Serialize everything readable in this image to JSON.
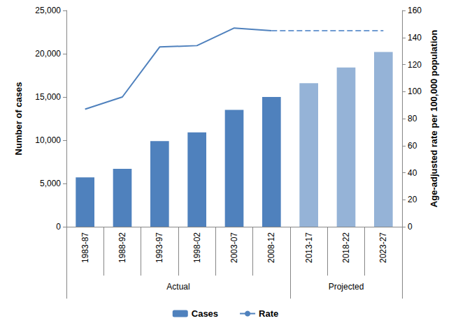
{
  "chart_data": {
    "type": "bar",
    "categories": [
      "1983-87",
      "1988-92",
      "1993-97",
      "1998-02",
      "2003-07",
      "2008-12",
      "2013-17",
      "2018-22",
      "2023-27"
    ],
    "category_groups": [
      {
        "name": "Actual",
        "count": 6
      },
      {
        "name": "Projected",
        "count": 3
      }
    ],
    "y_label": "Number of cases",
    "y2_label": "Age-adjusted rate per 100,000 population",
    "ylim": [
      0,
      25000
    ],
    "yticks": [
      0,
      {
        "value": 5000,
        "label": "5,000"
      },
      {
        "value": 10000,
        "label": "10,000"
      },
      {
        "value": 15000,
        "label": "15,000"
      },
      {
        "value": 20000,
        "label": "20,000"
      },
      {
        "value": 25000,
        "label": "25,000"
      }
    ],
    "y2lim": [
      0,
      160
    ],
    "y2ticks": [
      0,
      20,
      40,
      60,
      80,
      100,
      120,
      140,
      160
    ],
    "grid": false,
    "legend": "bottom",
    "series": [
      {
        "name": "Cases",
        "type": "bar",
        "values": [
          5700,
          6700,
          9900,
          10900,
          13500,
          15000,
          16600,
          18400,
          20200
        ],
        "colors": [
          "#4f81bd",
          "#4f81bd",
          "#4f81bd",
          "#4f81bd",
          "#4f81bd",
          "#4f81bd",
          "#95b3d7",
          "#95b3d7",
          "#95b3d7"
        ]
      },
      {
        "name": "Rate",
        "type": "line",
        "axis": "y2",
        "color": "#4f81bd",
        "line_style": "solid",
        "values": [
          87,
          96,
          133,
          134,
          147,
          145,
          null,
          null,
          null
        ]
      },
      {
        "name": "Rate",
        "type": "line",
        "axis": "y2",
        "color": "#6f9bd1",
        "line_style": "dashed",
        "values": [
          null,
          null,
          null,
          null,
          null,
          145,
          145,
          145,
          145
        ]
      }
    ]
  }
}
